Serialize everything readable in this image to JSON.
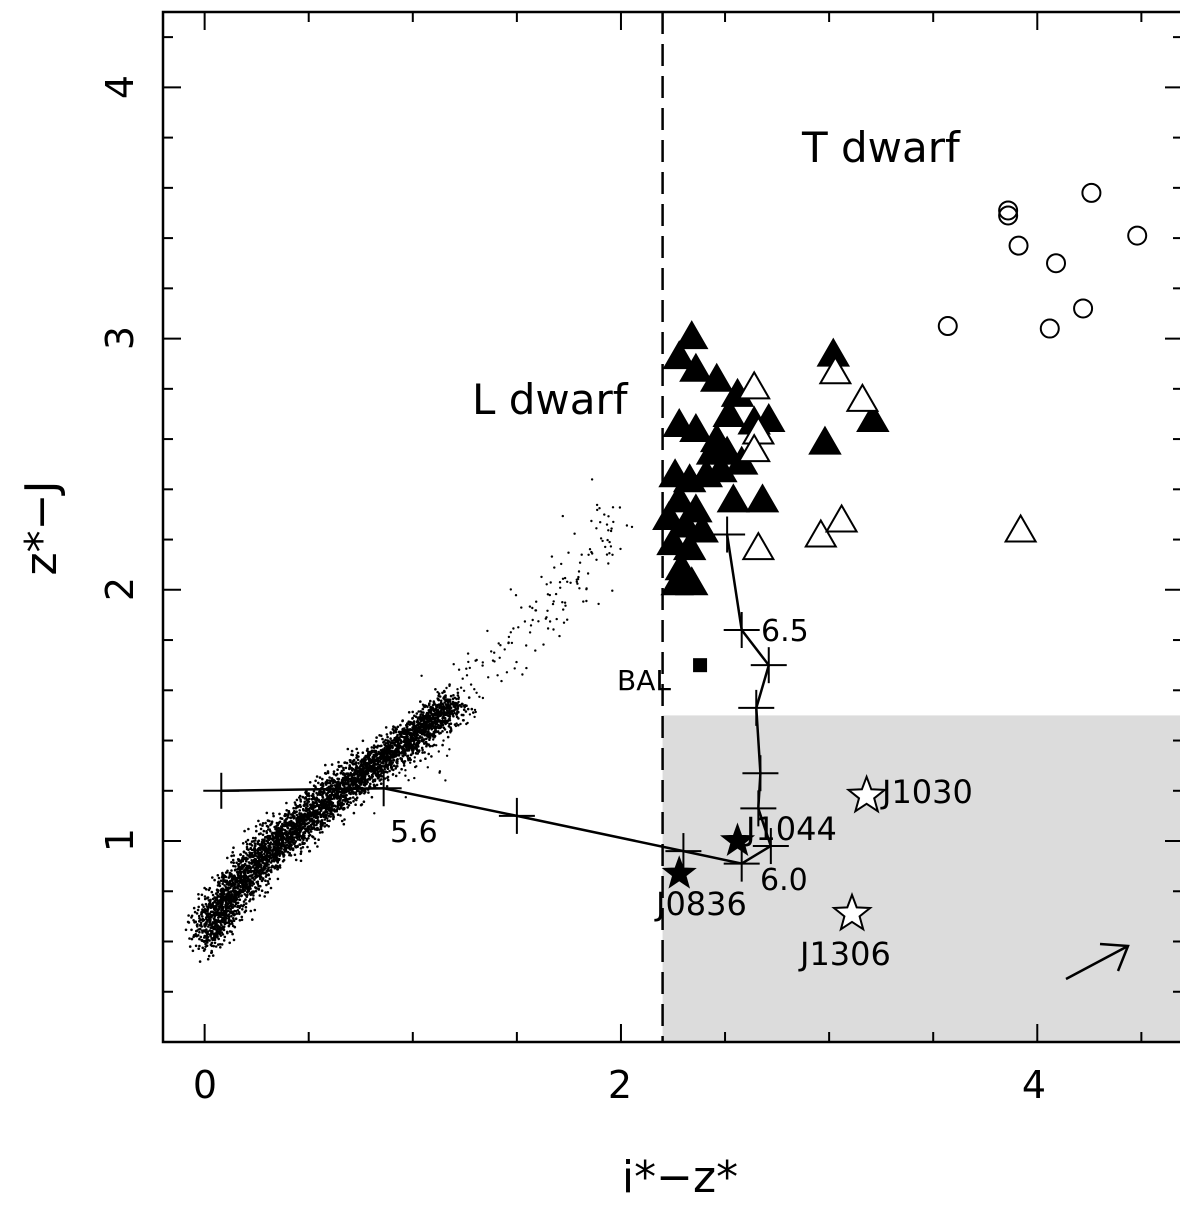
{
  "chart_data": {
    "type": "scatter",
    "xlabel": "i*−z*",
    "ylabel": "z*−J",
    "xlim": [
      -0.2,
      4.7
    ],
    "ylim": [
      0.2,
      4.3
    ],
    "x_ticks": [
      "0",
      "2",
      "4"
    ],
    "y_ticks": [
      "1",
      "2",
      "3",
      "4"
    ],
    "grid": false,
    "region_labels": [
      "L dwarf",
      "T dwarf"
    ],
    "cut_line_x": 2.2,
    "selection_region": {
      "x_min": 2.2,
      "y_max": 1.5,
      "color": "#dcdcdc"
    },
    "colors": {
      "ink": "#000000",
      "shade": "#dcdcdc"
    },
    "series": [
      {
        "marker": "filled-triangle",
        "points": [
          [
            2.28,
            2.93
          ],
          [
            2.34,
            3.01
          ],
          [
            2.36,
            2.88
          ],
          [
            2.46,
            2.84
          ],
          [
            2.56,
            2.78
          ],
          [
            2.28,
            2.66
          ],
          [
            2.36,
            2.64
          ],
          [
            2.46,
            2.6
          ],
          [
            2.52,
            2.7
          ],
          [
            2.64,
            2.67
          ],
          [
            2.71,
            2.68
          ],
          [
            2.44,
            2.55
          ],
          [
            2.51,
            2.55
          ],
          [
            2.58,
            2.51
          ],
          [
            2.26,
            2.46
          ],
          [
            2.33,
            2.44
          ],
          [
            2.41,
            2.46
          ],
          [
            2.48,
            2.48
          ],
          [
            2.28,
            2.36
          ],
          [
            2.36,
            2.32
          ],
          [
            2.54,
            2.36
          ],
          [
            2.68,
            2.36
          ],
          [
            2.23,
            2.29
          ],
          [
            2.31,
            2.26
          ],
          [
            2.39,
            2.24
          ],
          [
            2.25,
            2.19
          ],
          [
            2.33,
            2.17
          ],
          [
            2.29,
            2.09
          ],
          [
            2.27,
            2.03
          ],
          [
            2.34,
            2.03
          ],
          [
            3.02,
            2.94
          ],
          [
            2.98,
            2.59
          ],
          [
            3.21,
            2.68
          ]
        ]
      },
      {
        "marker": "open-triangle",
        "points": [
          [
            2.64,
            2.81
          ],
          [
            3.03,
            2.87
          ],
          [
            3.16,
            2.76
          ],
          [
            2.66,
            2.63
          ],
          [
            2.64,
            2.56
          ],
          [
            2.66,
            2.17
          ],
          [
            2.96,
            2.22
          ],
          [
            3.06,
            2.28
          ],
          [
            3.92,
            2.24
          ]
        ]
      },
      {
        "marker": "open-circle",
        "points": [
          [
            3.86,
            3.51
          ],
          [
            3.86,
            3.49
          ],
          [
            4.26,
            3.58
          ],
          [
            3.91,
            3.37
          ],
          [
            4.48,
            3.41
          ],
          [
            4.09,
            3.3
          ],
          [
            3.57,
            3.05
          ],
          [
            4.06,
            3.04
          ],
          [
            4.22,
            3.12
          ]
        ]
      },
      {
        "marker": "filled-star",
        "points": [
          [
            2.28,
            0.87
          ],
          [
            2.56,
            1.0
          ]
        ]
      },
      {
        "marker": "open-star",
        "points": [
          [
            3.18,
            1.18
          ],
          [
            3.11,
            0.71
          ]
        ]
      },
      {
        "marker": "filled-square",
        "points": [
          [
            2.38,
            1.7
          ]
        ]
      }
    ],
    "track": [
      [
        0.08,
        1.2
      ],
      [
        0.86,
        1.21
      ],
      [
        1.5,
        1.1
      ],
      [
        2.3,
        0.96
      ],
      [
        2.58,
        0.91
      ],
      [
        2.72,
        0.98
      ],
      [
        2.66,
        1.13
      ],
      [
        2.67,
        1.27
      ],
      [
        2.65,
        1.53
      ],
      [
        2.71,
        1.7
      ],
      [
        2.58,
        1.84
      ],
      [
        2.51,
        2.22
      ]
    ],
    "track_labels": [
      "5.6",
      "6.0",
      "6.5"
    ],
    "object_labels": [
      "J1030",
      "J1044",
      "J0836",
      "J1306",
      "BAL"
    ]
  }
}
